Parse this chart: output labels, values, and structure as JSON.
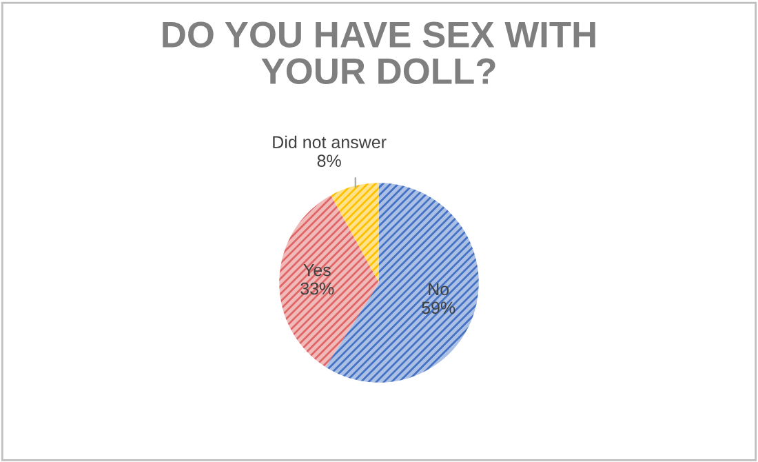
{
  "chart_data": {
    "type": "pie",
    "title": "DO YOU HAVE SEX WITH\nYOUR DOLL?",
    "categories": [
      "No",
      "Yes",
      "Did not answer"
    ],
    "values": [
      59,
      33,
      8
    ],
    "value_labels": [
      "59%",
      "33%",
      "8%"
    ],
    "colors": [
      "#4472c4",
      "#e06666",
      "#ffc000"
    ],
    "legend": false
  }
}
